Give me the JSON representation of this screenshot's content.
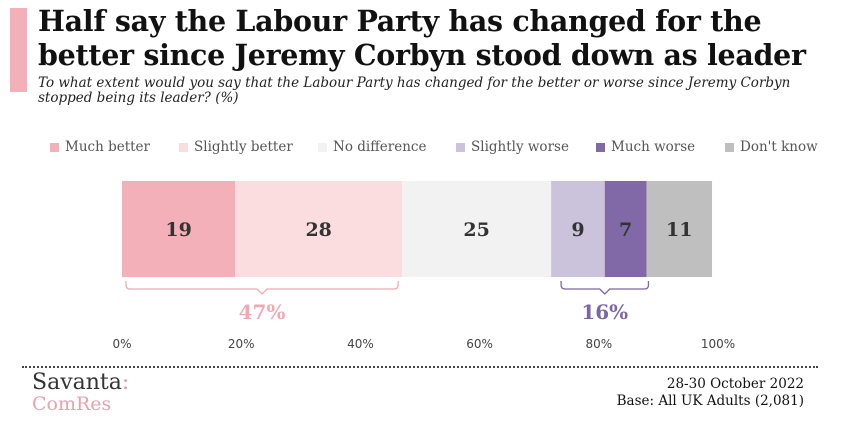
{
  "title": "Half say the Labour Party has changed for the better since Jeremy Corbyn stood down as leader",
  "subtitle": "To what extent would you say that the Labour Party has changed for the better or worse since Jeremy Corbyn stopped being its leader? (%)",
  "chart_data": {
    "type": "bar",
    "orientation": "horizontal-stacked",
    "categories": [
      "Much better",
      "Slightly better",
      "No difference",
      "Slightly worse",
      "Much worse",
      "Don't know"
    ],
    "values": [
      19,
      28,
      25,
      9,
      7,
      11
    ],
    "colors": [
      "#f4b0b8",
      "#fbdde0",
      "#f2f2f2",
      "#cbc3dc",
      "#8169a7",
      "#bfbfbf"
    ],
    "xlim": [
      0,
      100
    ],
    "x_ticks": [
      "0%",
      "20%",
      "40%",
      "60%",
      "80%",
      "100%"
    ],
    "annotations": [
      {
        "label": "47%",
        "from": 0,
        "to": 47,
        "color": "#f0a9b2"
      },
      {
        "label": "16%",
        "from": 73,
        "to": 89,
        "color": "#7d66a3"
      }
    ]
  },
  "footer": {
    "date": "28-30 October 2022",
    "base": "Base: All UK Adults (2,081)"
  },
  "logo": {
    "line1": "Savanta",
    "colon": ":",
    "line2": "ComRes"
  }
}
